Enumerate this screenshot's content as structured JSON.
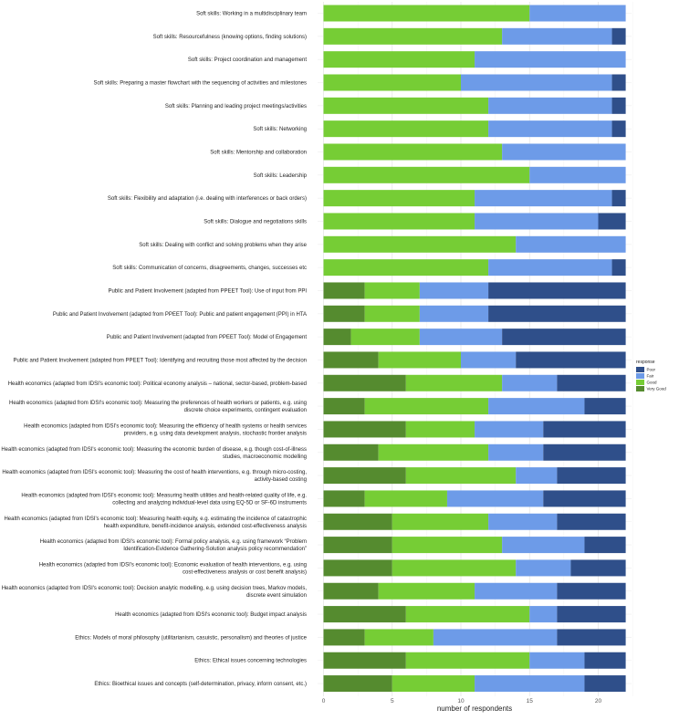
{
  "chart_data": {
    "type": "bar",
    "orientation": "horizontal",
    "stacked": true,
    "title": "",
    "xlabel": "number of respondents",
    "ylabel": "",
    "xlim": [
      0,
      22.5
    ],
    "xticks": [
      0,
      5,
      10,
      15,
      20
    ],
    "grid": true,
    "legend_title": "response",
    "legend_position": "right",
    "legend_entries": [
      "Poor",
      "Fair",
      "Good",
      "Very Good"
    ],
    "colors": {
      "Very Good": "#558b2f",
      "Good": "#76cd35",
      "Fair": "#6d9be8",
      "Poor": "#2f4f8a"
    },
    "categories": [
      {
        "lines": [
          "Soft skills: Working in a multidisciplinary team"
        ],
        "values": {
          "Very Good": 0,
          "Good": 15,
          "Fair": 7,
          "Poor": 0
        }
      },
      {
        "lines": [
          "Soft skills: Resourcefulness (knowing options, finding solutions)"
        ],
        "values": {
          "Very Good": 0,
          "Good": 13,
          "Fair": 8,
          "Poor": 1
        }
      },
      {
        "lines": [
          "Soft skills: Project coordination and management"
        ],
        "values": {
          "Very Good": 0,
          "Good": 11,
          "Fair": 11,
          "Poor": 0
        }
      },
      {
        "lines": [
          "Soft skills: Preparing a master flowchart with the sequencing of activities and milestones"
        ],
        "values": {
          "Very Good": 0,
          "Good": 10,
          "Fair": 11,
          "Poor": 1
        }
      },
      {
        "lines": [
          "Soft skills: Planning and leading project meetings/activities"
        ],
        "values": {
          "Very Good": 0,
          "Good": 12,
          "Fair": 9,
          "Poor": 1
        }
      },
      {
        "lines": [
          "Soft skills: Networking"
        ],
        "values": {
          "Very Good": 0,
          "Good": 12,
          "Fair": 9,
          "Poor": 1
        }
      },
      {
        "lines": [
          "Soft skills: Mentorship and collaboration"
        ],
        "values": {
          "Very Good": 0,
          "Good": 13,
          "Fair": 9,
          "Poor": 0
        }
      },
      {
        "lines": [
          "Soft skills: Leadership"
        ],
        "values": {
          "Very Good": 0,
          "Good": 15,
          "Fair": 7,
          "Poor": 0
        }
      },
      {
        "lines": [
          "Soft skills: Flexibility and adaptation (i.e. dealing with interferences or back orders)"
        ],
        "values": {
          "Very Good": 0,
          "Good": 11,
          "Fair": 10,
          "Poor": 1
        }
      },
      {
        "lines": [
          "Soft skills: Dialogue and negotiations skills"
        ],
        "values": {
          "Very Good": 0,
          "Good": 11,
          "Fair": 9,
          "Poor": 2
        }
      },
      {
        "lines": [
          "Soft skills: Dealing with conflict and solving problems when they arise"
        ],
        "values": {
          "Very Good": 0,
          "Good": 14,
          "Fair": 8,
          "Poor": 0
        }
      },
      {
        "lines": [
          "Soft skills: Communication of concerns, disagreements, changes, successes etc"
        ],
        "values": {
          "Very Good": 0,
          "Good": 12,
          "Fair": 9,
          "Poor": 1
        }
      },
      {
        "lines": [
          "Public and Patient Involvement (adapted from PPEET Tool): Use of input from PPI"
        ],
        "values": {
          "Very Good": 3,
          "Good": 4,
          "Fair": 5,
          "Poor": 10
        }
      },
      {
        "lines": [
          "Public and Patient Involvement (adapted from PPEET Tool): Public and patient engagement (PPI) in HTA"
        ],
        "values": {
          "Very Good": 3,
          "Good": 4,
          "Fair": 5,
          "Poor": 10
        }
      },
      {
        "lines": [
          "Public and Patient Involvement (adapted from PPEET Tool): Model of Engagement"
        ],
        "values": {
          "Very Good": 2,
          "Good": 5,
          "Fair": 6,
          "Poor": 9
        }
      },
      {
        "lines": [
          "Public and Patient Involvement (adapted from PPEET Tool): Identifying and recruiting those most affected by the decision"
        ],
        "values": {
          "Very Good": 4,
          "Good": 6,
          "Fair": 4,
          "Poor": 8
        }
      },
      {
        "lines": [
          "Health economics (adapted from IDSI's economic tool): Political economy analysis – national, sector-based, problem-based"
        ],
        "values": {
          "Very Good": 6,
          "Good": 7,
          "Fair": 4,
          "Poor": 5
        }
      },
      {
        "lines": [
          "Health economics (adapted from IDSI's economic tool): Measuring the preferences of health workers or patients, e.g. using",
          "discrete choice experiments, contingent evaluation"
        ],
        "values": {
          "Very Good": 3,
          "Good": 9,
          "Fair": 7,
          "Poor": 3
        }
      },
      {
        "lines": [
          "Health economics (adapted from IDSI's economic tool): Measuring the efficiency of health systems or health services",
          "providers, e.g. using data development analysis, stochastic frontier analysis"
        ],
        "values": {
          "Very Good": 6,
          "Good": 5,
          "Fair": 5,
          "Poor": 6
        }
      },
      {
        "lines": [
          "Health economics (adapted from IDSI's economic tool): Measuring the economic burden of disease, e.g. though cost-of-illness",
          "studies, macroeconomic modelling"
        ],
        "values": {
          "Very Good": 4,
          "Good": 8,
          "Fair": 4,
          "Poor": 6
        }
      },
      {
        "lines": [
          "Health economics (adapted from IDSI's economic tool): Measuring the cost of health interventions, e.g. through micro-costing,",
          "activity-based costing"
        ],
        "values": {
          "Very Good": 6,
          "Good": 8,
          "Fair": 3,
          "Poor": 5
        }
      },
      {
        "lines": [
          "Health economics (adapted from IDSI's economic tool): Measuring health utilities and health-related quality of life, e.g.",
          "collecting and analyzing individual-level data using EQ-5D or SF-6D instruments"
        ],
        "values": {
          "Very Good": 3,
          "Good": 6,
          "Fair": 7,
          "Poor": 6
        }
      },
      {
        "lines": [
          "Health economics (adapted from IDSI's economic tool): Measuring health equity, e.g. estimating the incidence of catastrophic",
          "health expenditure, benefit-incidence analysis, extended cost-effectiveness analysis"
        ],
        "values": {
          "Very Good": 5,
          "Good": 7,
          "Fair": 5,
          "Poor": 5
        }
      },
      {
        "lines": [
          "Health economics (adapted from IDSI's economic tool): Formal policy analysis, e.g. using framework “Problem",
          "Identification-Evidence Gathering-Solution analysis policy recommendation”"
        ],
        "values": {
          "Very Good": 5,
          "Good": 8,
          "Fair": 6,
          "Poor": 3
        }
      },
      {
        "lines": [
          "Health economics (adapted from IDSI's economic tool): Economic evaluation of health interventions, e.g. using",
          "cost-effectiveness analysis or cost benefit analysis)"
        ],
        "values": {
          "Very Good": 5,
          "Good": 9,
          "Fair": 4,
          "Poor": 4
        }
      },
      {
        "lines": [
          "Health economics (adapted from IDSI's economic tool): Decision analytic modelling, e.g. using decision trees, Markov models,",
          "discrete event simulation"
        ],
        "values": {
          "Very Good": 4,
          "Good": 7,
          "Fair": 6,
          "Poor": 5
        }
      },
      {
        "lines": [
          "Health economics (adapted from IDSI's economic tool): Budget impact analysis"
        ],
        "values": {
          "Very Good": 6,
          "Good": 9,
          "Fair": 2,
          "Poor": 5
        }
      },
      {
        "lines": [
          "Ethics: Models of moral philosophy (utilitarianism, casuistic, personalism) and theories of justice"
        ],
        "values": {
          "Very Good": 3,
          "Good": 5,
          "Fair": 9,
          "Poor": 5
        }
      },
      {
        "lines": [
          "Ethics: Ethical issues concerning technologies"
        ],
        "values": {
          "Very Good": 6,
          "Good": 9,
          "Fair": 4,
          "Poor": 3
        }
      },
      {
        "lines": [
          "Ethics: Bioethical issues and concepts (self-determination, privacy, inform consent, etc.)"
        ],
        "values": {
          "Very Good": 5,
          "Good": 6,
          "Fair": 8,
          "Poor": 3
        }
      }
    ]
  }
}
